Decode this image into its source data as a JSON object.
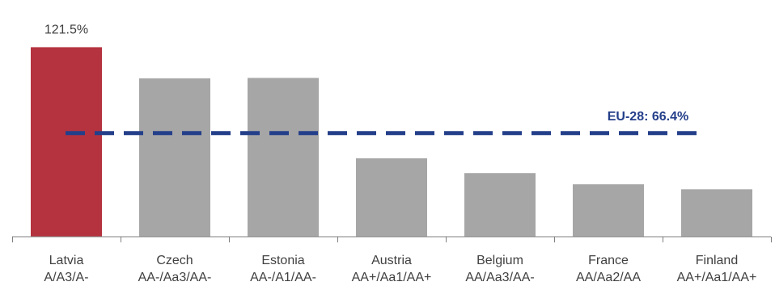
{
  "chart_data": {
    "type": "bar",
    "categories": [
      "Latvia",
      "Czech",
      "Estonia",
      "Austria",
      "Belgium",
      "France",
      "Finland"
    ],
    "ratings": [
      "A/A3/A-",
      "AA-/Aa3/AA-",
      "AA-/A1/AA-",
      "AA+/Aa1/AA+",
      "AA/Aa3/AA-",
      "AA/Aa2/AA",
      "AA+/Aa1/AA+"
    ],
    "values": [
      121.5,
      101.5,
      101.8,
      50.3,
      40.8,
      33.6,
      30.4
    ],
    "data_labels": [
      "121.5%",
      "",
      "",
      "",
      "",
      "",
      ""
    ],
    "colors": {
      "highlight": "#b5333f",
      "bar": "#a6a6a6",
      "reference_line": "#243f8a",
      "axis": "#808080"
    },
    "reference_line": {
      "value": 66.4,
      "label": "EU-28: 66.4%"
    },
    "ylim": [
      0,
      130
    ],
    "grid": false,
    "legend": "none"
  }
}
